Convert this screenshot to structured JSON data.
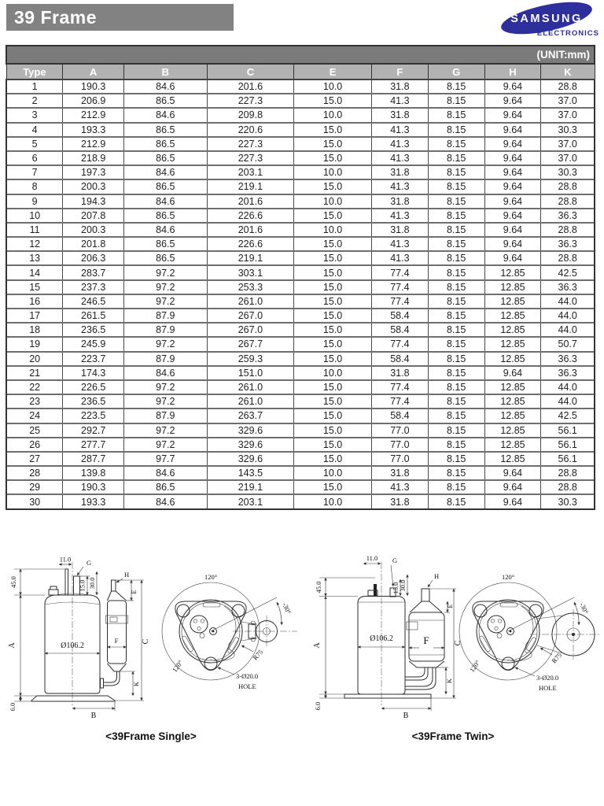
{
  "page": {
    "title": "39 Frame"
  },
  "logo": {
    "brand": "SAMSUNG",
    "sub": "ELECTRONICS",
    "color": "#2c2f9c"
  },
  "table": {
    "unit_label": "(UNIT:mm)",
    "columns": [
      "Type",
      "A",
      "B",
      "C",
      "E",
      "F",
      "G",
      "H",
      "K"
    ],
    "rows": [
      [
        "1",
        "190.3",
        "84.6",
        "201.6",
        "10.0",
        "31.8",
        "8.15",
        "9.64",
        "28.8"
      ],
      [
        "2",
        "206.9",
        "86.5",
        "227.3",
        "15.0",
        "41.3",
        "8.15",
        "9.64",
        "37.0"
      ],
      [
        "3",
        "212.9",
        "84.6",
        "209.8",
        "10.0",
        "31.8",
        "8.15",
        "9.64",
        "37.0"
      ],
      [
        "4",
        "193.3",
        "86.5",
        "220.6",
        "15.0",
        "41.3",
        "8.15",
        "9.64",
        "30.3"
      ],
      [
        "5",
        "212.9",
        "86.5",
        "227.3",
        "15.0",
        "41.3",
        "8.15",
        "9.64",
        "37.0"
      ],
      [
        "6",
        "218.9",
        "86.5",
        "227.3",
        "15.0",
        "41.3",
        "8.15",
        "9.64",
        "37.0"
      ],
      [
        "7",
        "197.3",
        "84.6",
        "203.1",
        "10.0",
        "31.8",
        "8.15",
        "9.64",
        "30.3"
      ],
      [
        "8",
        "200.3",
        "86.5",
        "219.1",
        "15.0",
        "41.3",
        "8.15",
        "9.64",
        "28.8"
      ],
      [
        "9",
        "194.3",
        "84.6",
        "201.6",
        "10.0",
        "31.8",
        "8.15",
        "9.64",
        "28.8"
      ],
      [
        "10",
        "207.8",
        "86.5",
        "226.6",
        "15.0",
        "41.3",
        "8.15",
        "9.64",
        "36.3"
      ],
      [
        "11",
        "200.3",
        "84.6",
        "201.6",
        "10.0",
        "31.8",
        "8.15",
        "9.64",
        "28.8"
      ],
      [
        "12",
        "201.8",
        "86.5",
        "226.6",
        "15.0",
        "41.3",
        "8.15",
        "9.64",
        "36.3"
      ],
      [
        "13",
        "206.3",
        "86.5",
        "219.1",
        "15.0",
        "41.3",
        "8.15",
        "9.64",
        "28.8"
      ],
      [
        "14",
        "283.7",
        "97.2",
        "303.1",
        "15.0",
        "77.4",
        "8.15",
        "12.85",
        "42.5"
      ],
      [
        "15",
        "237.3",
        "97.2",
        "253.3",
        "15.0",
        "77.4",
        "8.15",
        "12.85",
        "36.3"
      ],
      [
        "16",
        "246.5",
        "97.2",
        "261.0",
        "15.0",
        "77.4",
        "8.15",
        "12.85",
        "44.0"
      ],
      [
        "17",
        "261.5",
        "87.9",
        "267.0",
        "15.0",
        "58.4",
        "8.15",
        "12.85",
        "44.0"
      ],
      [
        "18",
        "236.5",
        "87.9",
        "267.0",
        "15.0",
        "58.4",
        "8.15",
        "12.85",
        "44.0"
      ],
      [
        "19",
        "245.9",
        "97.2",
        "267.7",
        "15.0",
        "77.4",
        "8.15",
        "12.85",
        "50.7"
      ],
      [
        "20",
        "223.7",
        "87.9",
        "259.3",
        "15.0",
        "58.4",
        "8.15",
        "12.85",
        "36.3"
      ],
      [
        "21",
        "174.3",
        "84.6",
        "151.0",
        "10.0",
        "31.8",
        "8.15",
        "9.64",
        "36.3"
      ],
      [
        "22",
        "226.5",
        "97.2",
        "261.0",
        "15.0",
        "77.4",
        "8.15",
        "12.85",
        "44.0"
      ],
      [
        "23",
        "236.5",
        "97.2",
        "261.0",
        "15.0",
        "77.4",
        "8.15",
        "12.85",
        "44.0"
      ],
      [
        "24",
        "223.5",
        "87.9",
        "263.7",
        "15.0",
        "58.4",
        "8.15",
        "12.85",
        "42.5"
      ],
      [
        "25",
        "292.7",
        "97.2",
        "329.6",
        "15.0",
        "77.0",
        "8.15",
        "12.85",
        "56.1"
      ],
      [
        "26",
        "277.7",
        "97.2",
        "329.6",
        "15.0",
        "77.0",
        "8.15",
        "12.85",
        "56.1"
      ],
      [
        "27",
        "287.7",
        "97.7",
        "329.6",
        "15.0",
        "77.0",
        "8.15",
        "12.85",
        "56.1"
      ],
      [
        "28",
        "139.8",
        "84.6",
        "143.5",
        "10.0",
        "31.8",
        "8.15",
        "9.64",
        "28.8"
      ],
      [
        "29",
        "190.3",
        "86.5",
        "219.1",
        "15.0",
        "41.3",
        "8.15",
        "9.64",
        "28.8"
      ],
      [
        "30",
        "193.3",
        "84.6",
        "203.1",
        "10.0",
        "31.8",
        "8.15",
        "9.64",
        "30.3"
      ]
    ]
  },
  "diagram_labels": {
    "w11": "11.0",
    "g": "G",
    "h15": "15.0",
    "h30": "30.0",
    "h45": "45.0",
    "a": "A",
    "dia": "Ø106.2",
    "f": "F",
    "c": "C",
    "e": "E",
    "h": "H",
    "k": "K",
    "h6": "6.0",
    "b": "B",
    "arc_top": "120°",
    "arc_left": "120°",
    "arc_right": "-30°",
    "r75": "R75",
    "hole_spec": "3-Ø20.0",
    "hole_word": "HOLE"
  },
  "captions": {
    "single": "<39Frame Single>",
    "twin": "<39Frame Twin>"
  }
}
